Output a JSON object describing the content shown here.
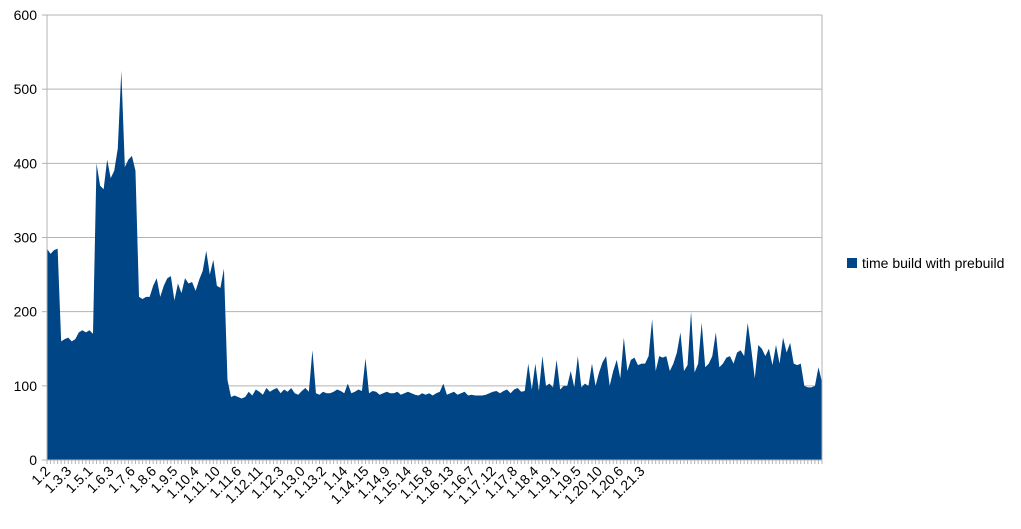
{
  "chart_data": {
    "type": "area",
    "title": "",
    "xlabel": "",
    "ylabel": "",
    "ylim": [
      0,
      600
    ],
    "y_ticks": [
      0,
      100,
      200,
      300,
      400,
      500,
      600
    ],
    "y_tick_labels": [
      "0",
      "100",
      "200",
      "300",
      "400",
      "500",
      "600"
    ],
    "grid": true,
    "legend": "right",
    "x_tick_labels": [
      "1.2",
      "1.3.3",
      "1.5.1",
      "1.6.3",
      "1.7.6",
      "1.8.6",
      "1.9.5",
      "1.10.4",
      "1.11.10",
      "1.11.6",
      "1.12.11",
      "1.12.3",
      "1.13.0",
      "1.13.2",
      "1.14",
      "1.14.15",
      "1.14.9",
      "1.15.14",
      "1.15.8",
      "1.16.13",
      "1.16.7",
      "1.17.12",
      "1.17.8",
      "1.18.4",
      "1.19.1",
      "1.19.5",
      "1.20.10",
      "1.20.6",
      "1.21.3"
    ],
    "label_every": 6,
    "series": [
      {
        "name": "time build with prebuild",
        "color": "#004586",
        "values": [
          285,
          278,
          283,
          285,
          160,
          163,
          165,
          160,
          163,
          172,
          175,
          172,
          175,
          170,
          400,
          370,
          365,
          405,
          380,
          390,
          420,
          525,
          395,
          405,
          410,
          390,
          220,
          217,
          220,
          220,
          235,
          245,
          220,
          235,
          245,
          248,
          215,
          238,
          225,
          245,
          238,
          240,
          228,
          243,
          255,
          282,
          250,
          270,
          235,
          232,
          258,
          108,
          85,
          87,
          85,
          83,
          85,
          92,
          87,
          95,
          92,
          88,
          97,
          92,
          95,
          97,
          90,
          95,
          92,
          97,
          90,
          88,
          93,
          97,
          92,
          148,
          90,
          88,
          92,
          90,
          90,
          92,
          95,
          93,
          90,
          103,
          90,
          92,
          95,
          93,
          137,
          90,
          93,
          92,
          88,
          90,
          92,
          90,
          90,
          92,
          88,
          90,
          92,
          90,
          88,
          87,
          90,
          88,
          90,
          87,
          90,
          92,
          103,
          88,
          90,
          92,
          88,
          90,
          92,
          87,
          88,
          87,
          87,
          87,
          88,
          90,
          92,
          93,
          90,
          93,
          95,
          90,
          95,
          97,
          92,
          93,
          130,
          95,
          130,
          93,
          140,
          100,
          103,
          98,
          135,
          95,
          100,
          100,
          120,
          98,
          140,
          98,
          103,
          100,
          130,
          100,
          118,
          132,
          140,
          100,
          120,
          135,
          110,
          165,
          120,
          135,
          138,
          128,
          130,
          130,
          140,
          190,
          120,
          140,
          138,
          140,
          120,
          130,
          145,
          172,
          120,
          128,
          200,
          118,
          130,
          185,
          125,
          130,
          140,
          172,
          125,
          130,
          138,
          140,
          130,
          145,
          148,
          140,
          185,
          150,
          110,
          155,
          150,
          140,
          150,
          128,
          155,
          130,
          165,
          145,
          158,
          130,
          128,
          130,
          100,
          98,
          98,
          100,
          125,
          105
        ]
      }
    ]
  }
}
